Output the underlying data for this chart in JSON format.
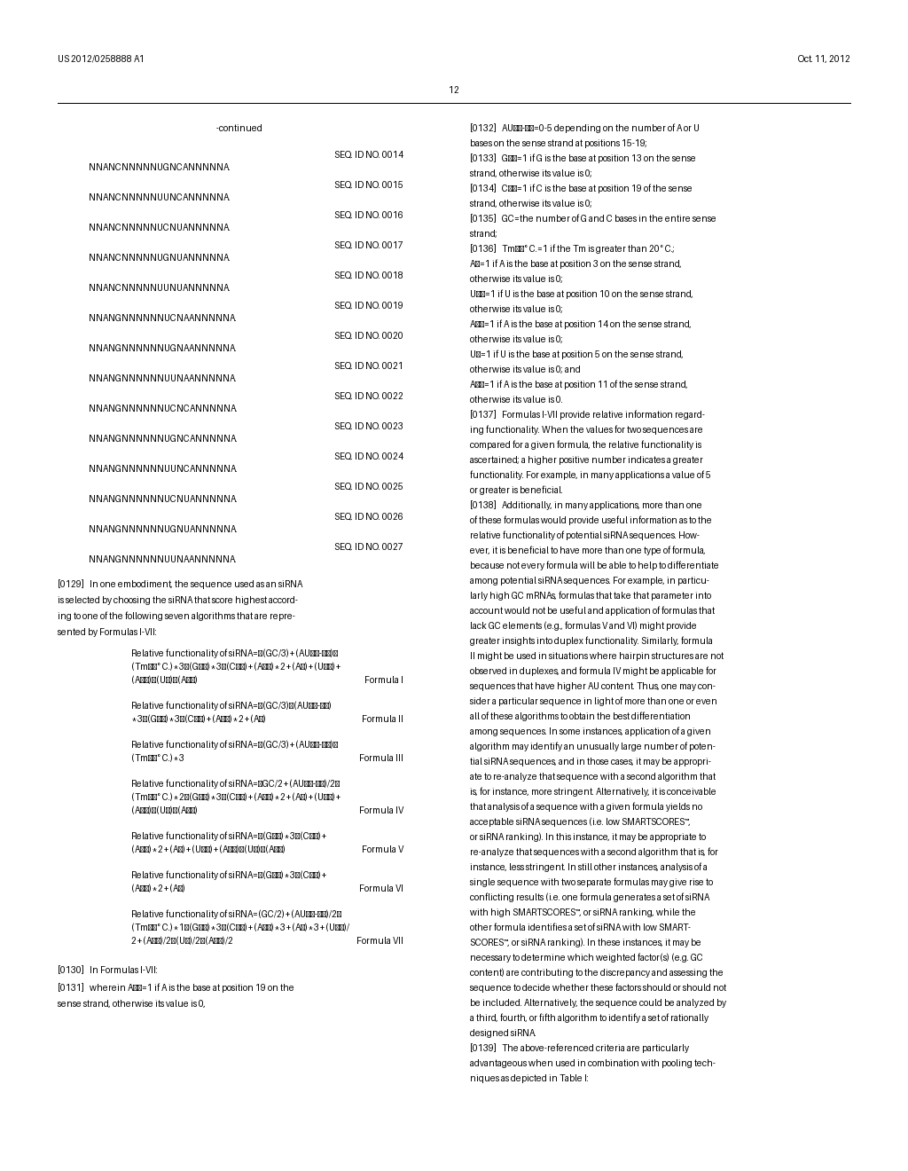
{
  "page_header_left": "US 2012/0258888 A1",
  "page_header_right": "Oct. 11, 2012",
  "page_number": "12",
  "bg_color": "#ffffff",
  "text_color": "#000000",
  "seq_entries": [
    [
      "SEQ. ID NO. 0014",
      "NNANCNNNNNUGNCANNNNNA."
    ],
    [
      "SEQ. ID NO. 0015",
      "NNANCNNNNNUUNCANNNNNA."
    ],
    [
      "SEQ. ID NO. 0016",
      "NNANCNNNNNUCNUANNNNNA."
    ],
    [
      "SEQ. ID NO. 0017",
      "NNANCNNNNNUGNUANNNNNA."
    ],
    [
      "SEQ. ID NO. 0018",
      "NNANCNNNNNUUNUANNNNNA."
    ],
    [
      "SEQ. ID NO. 0019",
      "NNANGNNNNNNUCNAANNNNNA."
    ],
    [
      "SEQ. ID NO. 0020",
      "NNANGNNNNNNUGNAANNNNNA."
    ],
    [
      "SEQ. ID NO. 0021",
      "NNANGNNNNNNUUNAANNNNNA."
    ],
    [
      "SEQ. ID NO. 0022",
      "NNANGNNNNNNUCNCANNNNNA."
    ],
    [
      "SEQ. ID NO. 0023",
      "NNANGNNNNNNUGNCANNNNNA."
    ],
    [
      "SEQ. ID NO. 0024",
      "NNANGNNNNNNUUNCANNNNNA."
    ],
    [
      "SEQ. ID NO. 0025",
      "NNANGNNNNNNUCNUANNNNNA."
    ],
    [
      "SEQ. ID NO. 0026",
      "NNANGNNNNNNUGNUANNNNNA."
    ],
    [
      "SEQ. ID NO. 0027",
      "NNANGNNNNNNUUNAANNNNNA."
    ]
  ],
  "formula_lines": [
    [
      "Relative functionality of siRNA=−(GC/3)+(AU15‑19)−",
      "(Tm20° C.)*3−(G13)*3−(C19)+(A19)*2+(A3)+(U10)+",
      "(A14)−(U5)−(A11)",
      "Formula I"
    ],
    [
      "Relative functionality of siRNA=−(GC/3)−(AU15‑19)",
      "*3−(G13)*3−(C19)+(A19)*2+(A3)",
      "",
      "Formula II"
    ],
    [
      "Relative functionality of siRNA=−(GC/3)+(AU15‑19)−",
      "(Tm20° C.)*3",
      "",
      "Formula III"
    ],
    [
      "Relative functionality of siRNA=−GC/2+(AU15‑19)/2−",
      "(Tm20° C.)*2−(G13)*3−(C19)+(A19)*2+(A3)+(U10)+",
      "(A14)−(U5)−(A11)",
      "Formula IV"
    ],
    [
      "Relative functionality of siRNA=−(G13)*3−(C19)+",
      "(A19)*2+(A3)+(U10)+(A14)−(U5)−(A11)",
      "",
      "Formula V"
    ],
    [
      "Relative functionality of siRNA=−(G13)*3−(C19)+",
      "(A19)*2+(A3)",
      "",
      "Formula VI"
    ],
    [
      "Relative functionality of siRNA=(GC/2)+(AU15‑19)/2−",
      "(Tm20° C.)*1−(G13)*3−(C19)+(A19)*3+(A3)*3+(U10)/",
      "2+(A14)/2−(U5)/2−(A11)/2",
      "Formula VII"
    ]
  ]
}
